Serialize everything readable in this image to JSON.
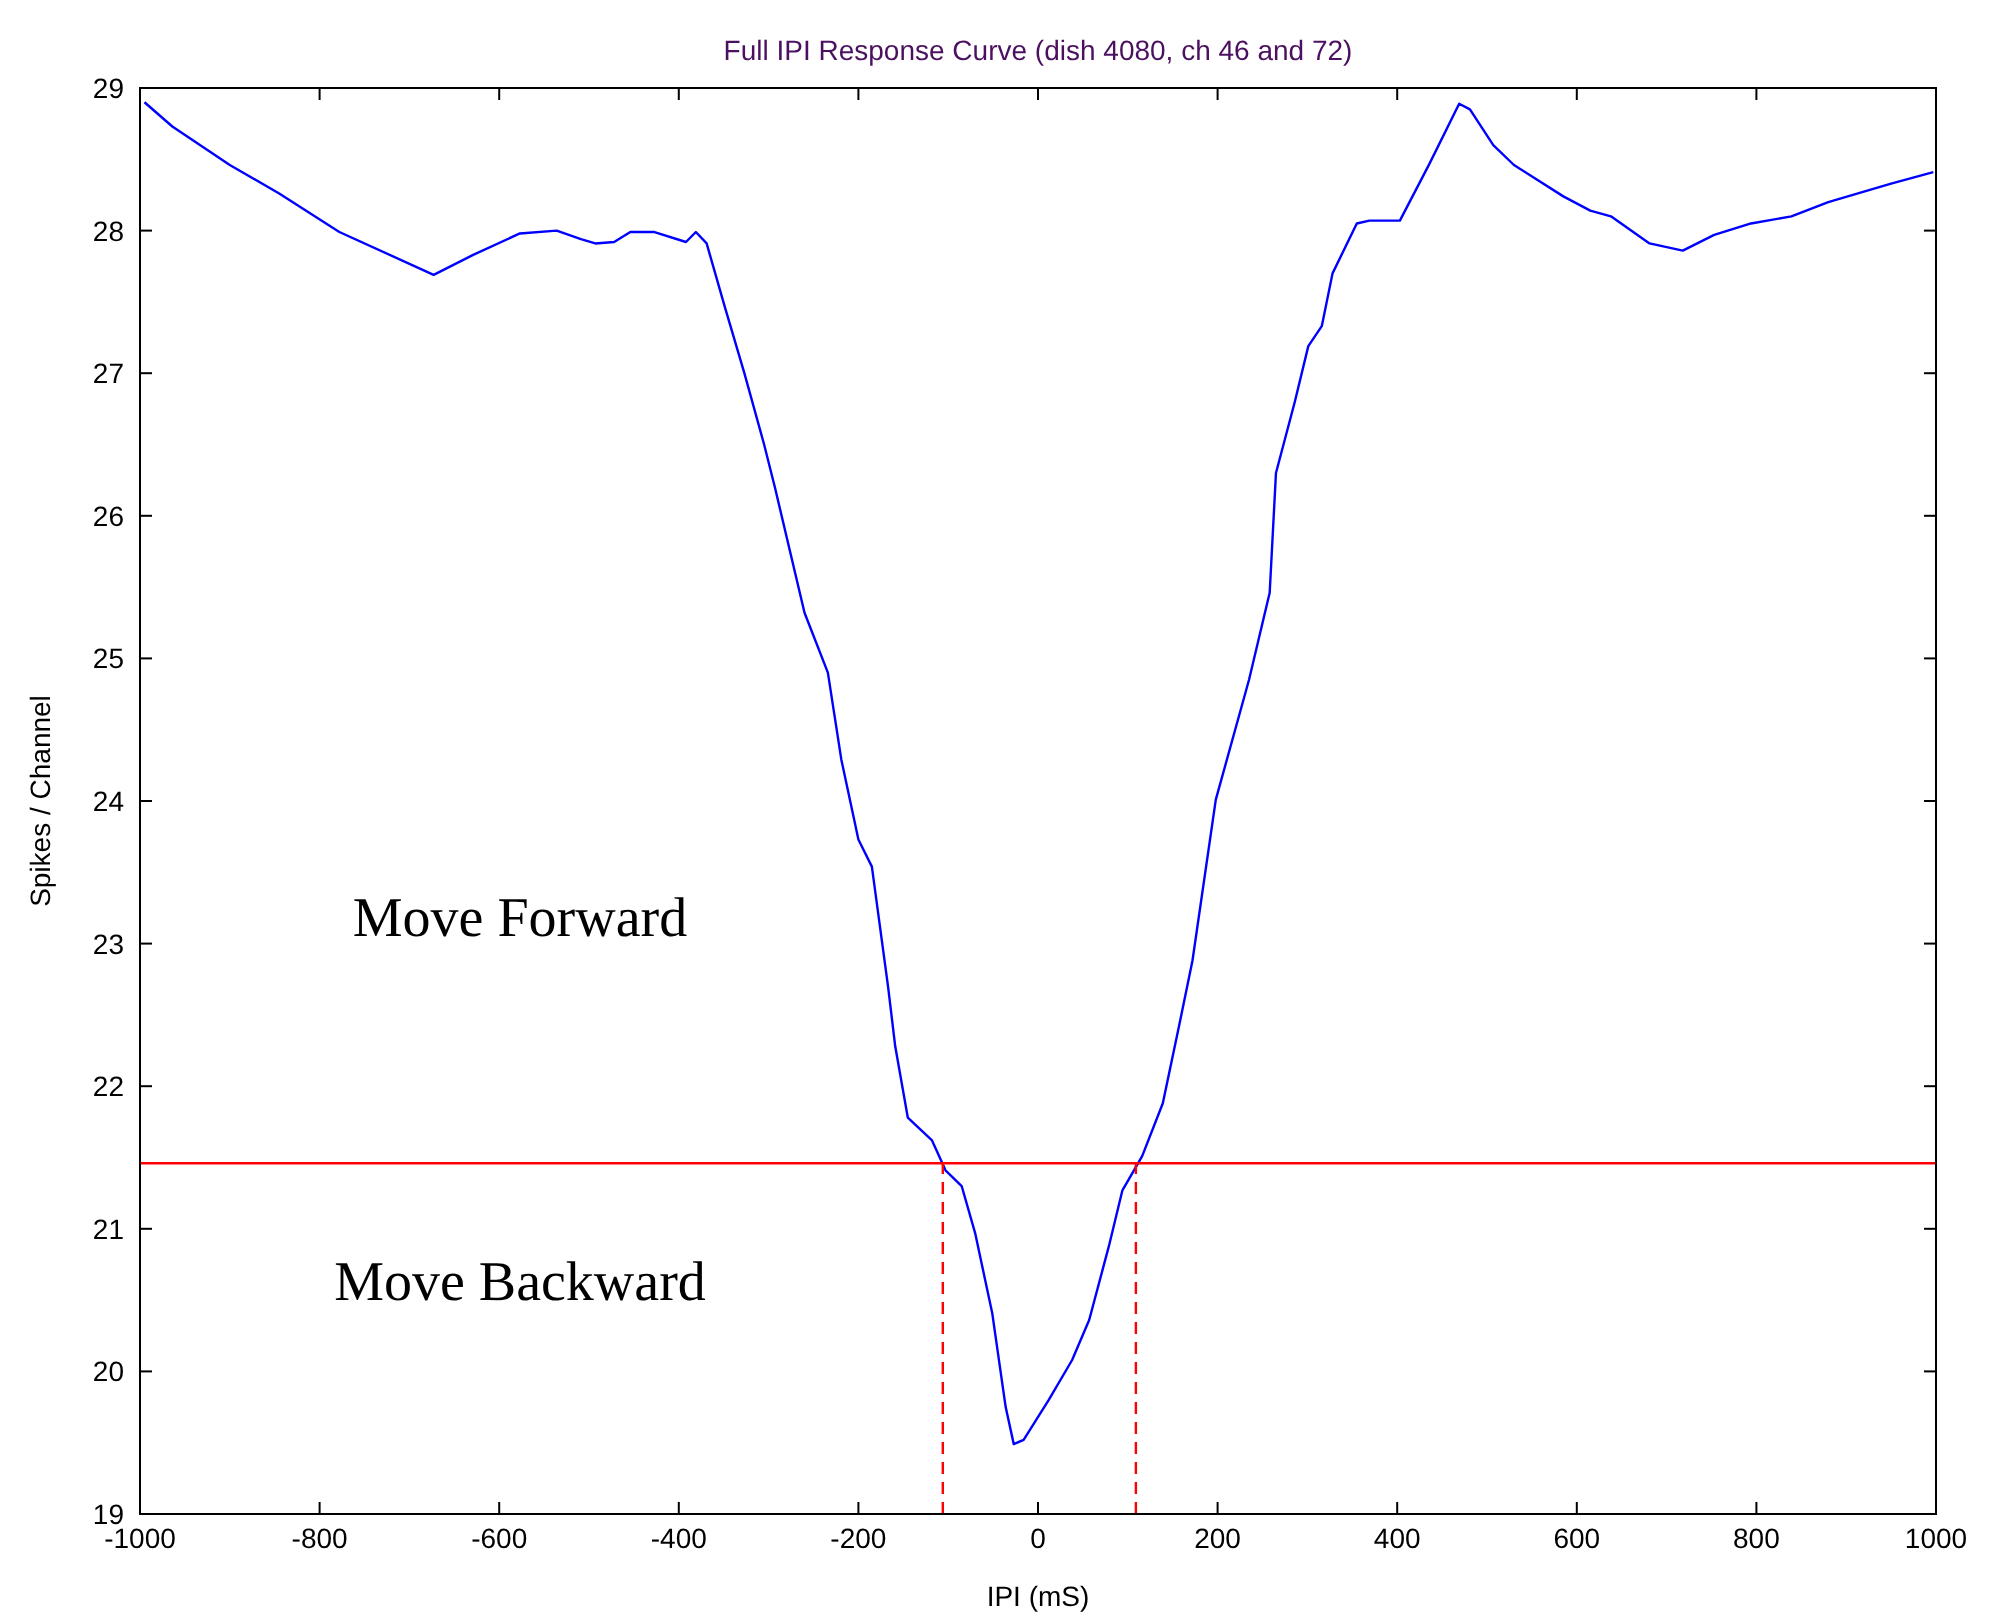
{
  "chart_data": {
    "type": "line",
    "title": "Full IPI Response Curve (dish 4080, ch 46 and 72)",
    "xlabel": "IPI (mS)",
    "ylabel": "Spikes / Channel",
    "xlim": [
      -1000,
      1000
    ],
    "xticks": [
      -1000,
      -800,
      -600,
      -400,
      -200,
      0,
      200,
      400,
      600,
      800,
      1000
    ],
    "ylim": [
      19,
      29
    ],
    "yticks": [
      19,
      20,
      21,
      22,
      23,
      24,
      25,
      26,
      27,
      28,
      29
    ],
    "grid": false,
    "series": [
      {
        "color": "#0000ff",
        "x": [
          -995,
          -964,
          -900,
          -845,
          -778,
          -673,
          -629,
          -577,
          -536,
          -509,
          -493,
          -472,
          -454,
          -427,
          -392,
          -381,
          -369,
          -349,
          -327,
          -305,
          -293,
          -260,
          -234,
          -219,
          -200,
          -185,
          -167,
          -159,
          -145,
          -118,
          -103,
          -85,
          -70,
          -51,
          -36,
          -27,
          -16,
          12,
          38,
          57,
          79,
          94,
          116,
          139,
          157,
          172,
          198,
          235,
          258,
          265,
          286,
          301,
          316,
          328,
          355,
          369,
          403,
          436,
          469,
          481,
          507,
          530,
          585,
          615,
          638,
          681,
          718,
          753,
          794,
          839,
          880,
          950,
          997
        ],
        "values": [
          28.9,
          28.73,
          28.46,
          28.26,
          27.99,
          27.69,
          27.83,
          27.98,
          28.0,
          27.94,
          27.91,
          27.92,
          27.99,
          27.99,
          27.92,
          27.99,
          27.91,
          27.47,
          27.0,
          26.5,
          26.2,
          25.32,
          24.9,
          24.29,
          23.73,
          23.54,
          22.7,
          22.28,
          21.78,
          21.62,
          21.41,
          21.3,
          20.97,
          20.41,
          19.75,
          19.49,
          19.52,
          19.8,
          20.08,
          20.36,
          20.88,
          21.27,
          21.51,
          21.88,
          22.42,
          22.88,
          24.01,
          24.85,
          25.46,
          26.3,
          26.8,
          27.19,
          27.33,
          27.7,
          28.05,
          28.07,
          28.07,
          28.47,
          28.89,
          28.85,
          28.6,
          28.46,
          28.24,
          28.14,
          28.1,
          27.91,
          27.86,
          27.97,
          28.05,
          28.1,
          28.2,
          28.33,
          28.41
        ]
      }
    ],
    "ref_lines": [
      {
        "axis": "y",
        "value": 21.46,
        "color": "#ff0000",
        "line_style": "solid"
      },
      {
        "axis": "x",
        "value": -106,
        "color": "#ff0000",
        "line_style": "dashed"
      },
      {
        "axis": "x",
        "value": 109,
        "color": "#ff0000",
        "line_style": "dashed"
      }
    ],
    "annotations": [
      "Move Forward",
      "Move Backward"
    ]
  }
}
